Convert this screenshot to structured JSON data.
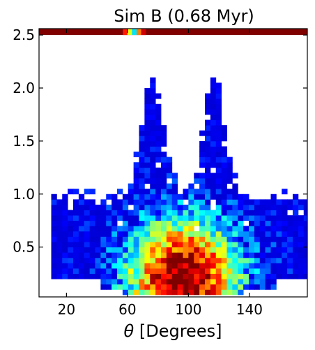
{
  "chart_data": {
    "type": "heatmap",
    "title": "Sim B (0.68 Myr)",
    "xlabel_symbol": "θ",
    "xlabel_text": " [Degrees]",
    "ylabel": "",
    "xlim": [
      2,
      178
    ],
    "ylim": [
      0.03,
      2.56
    ],
    "xticks": [
      20,
      60,
      100,
      140
    ],
    "yticks": [
      0.5,
      1.0,
      1.5,
      2.0,
      2.5
    ],
    "ytick_labels": [
      "0.5",
      "1.0",
      "1.5",
      "2.0",
      "2.5"
    ],
    "colormap": "jet",
    "value_range": [
      0,
      1
    ],
    "bin_width_deg": 3.6,
    "bin_height": 0.05,
    "grid": false,
    "legend": "none",
    "top_band": {
      "y_range": [
        2.5,
        2.56
      ],
      "value": 1.0
    },
    "density_model": {
      "description_values": "relative density: peak near theta 95, y 0.2",
      "core_theta": 95,
      "core_y": 0.2,
      "lobe_thetas": [
        75,
        115
      ],
      "max_y": 2.15
    }
  }
}
